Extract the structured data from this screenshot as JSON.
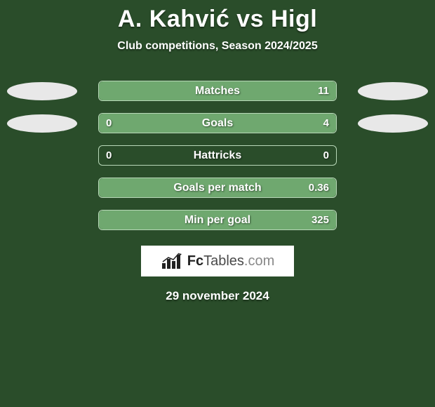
{
  "title": "A. Kahvić vs Higl",
  "subtitle": "Club competitions, Season 2024/2025",
  "date": "29 november 2024",
  "logo": {
    "part1": "Fc",
    "part2": "Tables",
    "part3": ".com"
  },
  "colors": {
    "background": "#2a4d2a",
    "bar_fill": "#6fa86f",
    "bar_border": "#b8d8b8",
    "ellipse": "#e8e8e8",
    "text": "#ffffff",
    "logo_bg": "#ffffff"
  },
  "typography": {
    "title_fontsize": 34,
    "subtitle_fontsize": 16,
    "bar_label_fontsize": 16,
    "bar_value_fontsize": 15,
    "date_fontsize": 17,
    "font_family": "Arial"
  },
  "layout": {
    "bar_track_width": 340,
    "bar_track_height": 29,
    "bar_border_radius": 6,
    "row_gap": 17,
    "ellipse_width": 100,
    "ellipse_height": 26
  },
  "rows": [
    {
      "label": "Matches",
      "left_value": "",
      "right_value": "11",
      "fill_mode": "full",
      "left_fill_pct": 0,
      "right_fill_pct": 100,
      "show_side_ellipses": true
    },
    {
      "label": "Goals",
      "left_value": "0",
      "right_value": "4",
      "fill_mode": "split",
      "left_fill_pct": 18,
      "right_fill_pct": 82,
      "show_side_ellipses": true
    },
    {
      "label": "Hattricks",
      "left_value": "0",
      "right_value": "0",
      "fill_mode": "none",
      "left_fill_pct": 0,
      "right_fill_pct": 0,
      "show_side_ellipses": false
    },
    {
      "label": "Goals per match",
      "left_value": "",
      "right_value": "0.36",
      "fill_mode": "full",
      "left_fill_pct": 0,
      "right_fill_pct": 100,
      "show_side_ellipses": false
    },
    {
      "label": "Min per goal",
      "left_value": "",
      "right_value": "325",
      "fill_mode": "full",
      "left_fill_pct": 0,
      "right_fill_pct": 100,
      "show_side_ellipses": false
    }
  ]
}
